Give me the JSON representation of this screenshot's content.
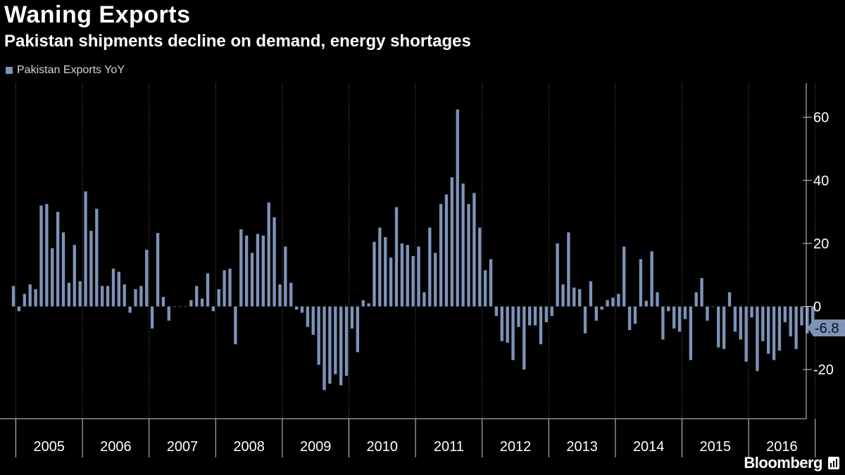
{
  "title": "Waning Exports",
  "subtitle": "Pakistan shipments decline on demand, energy shortages",
  "legend": "Pakistan Exports YoY",
  "brand": "Bloomberg",
  "colors": {
    "bar": "#7d93b8",
    "grid": "#6a6a6a",
    "axis": "#d0d0d0",
    "background": "#000000",
    "last_label_bg": "#7d93b8"
  },
  "chart_data": {
    "type": "bar",
    "series": [
      {
        "name": "Pakistan Exports YoY"
      }
    ],
    "x_tick_labels": [
      "2005",
      "2006",
      "2007",
      "2008",
      "2009",
      "2010",
      "2011",
      "2012",
      "2013",
      "2014",
      "2015",
      "2016"
    ],
    "ylim": [
      -35,
      70
    ],
    "y_ticks": [
      60,
      40,
      20,
      0,
      -20
    ],
    "y_tick_labels": [
      "60",
      "40",
      "20",
      "0",
      "-20"
    ],
    "last_value_label": "-6.8",
    "grid": "vertical dotted at year boundaries",
    "legend_position": "top-left",
    "values": [
      6.5,
      -1.5,
      4,
      7,
      5.5,
      32,
      32.5,
      18.5,
      30,
      23.5,
      7.5,
      19.5,
      8,
      36.5,
      24,
      31,
      6.5,
      6.5,
      12,
      11,
      7,
      -2,
      5.5,
      6.5,
      18,
      -7,
      23.3,
      3,
      -4.5,
      0,
      0,
      0,
      2,
      6.5,
      2.5,
      10.5,
      -1.5,
      5.5,
      11.5,
      12,
      -12,
      24.5,
      22.5,
      17,
      23,
      22.5,
      33,
      28.3,
      7,
      19,
      7.5,
      -1,
      -2,
      -6.5,
      -9,
      -18.5,
      -26.5,
      -24.5,
      -21.5,
      -25,
      -22,
      -7,
      -14.5,
      2,
      1,
      20.5,
      25,
      22,
      15.5,
      31.5,
      20,
      19.5,
      16,
      19,
      4.5,
      25,
      17,
      32.5,
      35.5,
      41,
      62.5,
      39,
      32.5,
      36,
      25,
      11.5,
      15,
      -3,
      -11,
      -11.5,
      -17,
      -6.5,
      -20,
      -6,
      -6,
      -12,
      -5,
      -3,
      20,
      7,
      23.5,
      6,
      5.5,
      -8.5,
      8,
      -4.5,
      -1,
      2,
      2.8,
      4,
      19,
      -7.5,
      -5.5,
      15,
      1.8,
      17.5,
      4.5,
      -10.5,
      -1.5,
      -7,
      -8,
      -4,
      -17,
      4.5,
      9,
      -4.5,
      0,
      -13,
      -13.5,
      4.5,
      -8,
      -10.5,
      -17.5,
      -3.5,
      -20.5,
      -11,
      -15,
      -17,
      -14,
      -5,
      -9.5,
      -13.5,
      -6,
      -8.5,
      -6.8
    ]
  }
}
